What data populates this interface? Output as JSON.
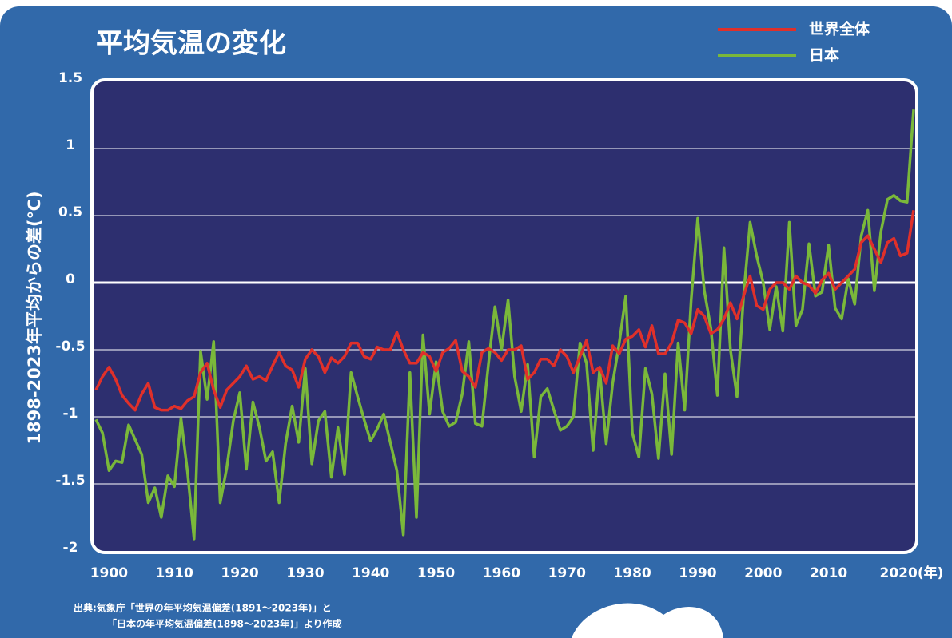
{
  "chart_data": {
    "type": "line",
    "title": "平均気温の変化",
    "ylabel": "1898-2023年平均からの差(℃)",
    "source": [
      "出典:気象庁「世界の年平均気温偏差(1891〜2023年)」と",
      "「日本の年平均気温偏差(1898〜2023年)」より作成"
    ],
    "x": [
      1898,
      1899,
      1900,
      1901,
      1902,
      1903,
      1904,
      1905,
      1906,
      1907,
      1908,
      1909,
      1910,
      1911,
      1912,
      1913,
      1914,
      1915,
      1916,
      1917,
      1918,
      1919,
      1920,
      1921,
      1922,
      1923,
      1924,
      1925,
      1926,
      1927,
      1928,
      1929,
      1930,
      1931,
      1932,
      1933,
      1934,
      1935,
      1936,
      1937,
      1938,
      1939,
      1940,
      1941,
      1942,
      1943,
      1944,
      1945,
      1946,
      1947,
      1948,
      1949,
      1950,
      1951,
      1952,
      1953,
      1954,
      1955,
      1956,
      1957,
      1958,
      1959,
      1960,
      1961,
      1962,
      1963,
      1964,
      1965,
      1966,
      1967,
      1968,
      1969,
      1970,
      1971,
      1972,
      1973,
      1974,
      1975,
      1976,
      1977,
      1978,
      1979,
      1980,
      1981,
      1982,
      1983,
      1984,
      1985,
      1986,
      1987,
      1988,
      1989,
      1990,
      1991,
      1992,
      1993,
      1994,
      1995,
      1996,
      1997,
      1998,
      1999,
      2000,
      2001,
      2002,
      2003,
      2004,
      2005,
      2006,
      2007,
      2008,
      2009,
      2010,
      2011,
      2012,
      2013,
      2014,
      2015,
      2016,
      2017,
      2018,
      2019,
      2020,
      2021,
      2022,
      2023
    ],
    "series": [
      {
        "name": "世界全体",
        "color": "#e0302a",
        "values": [
          -0.8,
          -0.7,
          -0.63,
          -0.72,
          -0.84,
          -0.9,
          -0.95,
          -0.83,
          -0.75,
          -0.93,
          -0.95,
          -0.95,
          -0.92,
          -0.94,
          -0.88,
          -0.85,
          -0.67,
          -0.6,
          -0.8,
          -0.93,
          -0.8,
          -0.75,
          -0.7,
          -0.62,
          -0.72,
          -0.7,
          -0.73,
          -0.62,
          -0.52,
          -0.62,
          -0.65,
          -0.78,
          -0.57,
          -0.5,
          -0.55,
          -0.67,
          -0.56,
          -0.6,
          -0.55,
          -0.45,
          -0.45,
          -0.55,
          -0.57,
          -0.48,
          -0.5,
          -0.5,
          -0.37,
          -0.5,
          -0.6,
          -0.6,
          -0.52,
          -0.55,
          -0.66,
          -0.52,
          -0.49,
          -0.43,
          -0.66,
          -0.7,
          -0.78,
          -0.52,
          -0.49,
          -0.52,
          -0.58,
          -0.5,
          -0.5,
          -0.47,
          -0.72,
          -0.67,
          -0.57,
          -0.57,
          -0.62,
          -0.5,
          -0.55,
          -0.67,
          -0.55,
          -0.43,
          -0.67,
          -0.63,
          -0.75,
          -0.47,
          -0.53,
          -0.42,
          -0.4,
          -0.35,
          -0.48,
          -0.32,
          -0.53,
          -0.53,
          -0.45,
          -0.28,
          -0.3,
          -0.38,
          -0.2,
          -0.25,
          -0.38,
          -0.35,
          -0.27,
          -0.15,
          -0.27,
          -0.1,
          0.05,
          -0.17,
          -0.2,
          -0.05,
          0.0,
          0.0,
          -0.05,
          0.05,
          0.0,
          -0.02,
          -0.08,
          0.02,
          0.07,
          -0.05,
          0.0,
          0.05,
          0.1,
          0.3,
          0.35,
          0.25,
          0.15,
          0.3,
          0.33,
          0.2,
          0.22,
          0.54
        ]
      },
      {
        "name": "日本",
        "color": "#7ab83a",
        "values": [
          -1.02,
          -1.12,
          -1.4,
          -1.33,
          -1.34,
          -1.06,
          -1.17,
          -1.28,
          -1.64,
          -1.53,
          -1.75,
          -1.44,
          -1.52,
          -1.01,
          -1.41,
          -1.91,
          -0.51,
          -0.87,
          -0.44,
          -1.64,
          -1.38,
          -1.03,
          -0.82,
          -1.39,
          -0.89,
          -1.08,
          -1.33,
          -1.26,
          -1.64,
          -1.2,
          -0.92,
          -1.19,
          -0.64,
          -1.35,
          -1.03,
          -0.96,
          -1.45,
          -1.08,
          -1.43,
          -0.67,
          -0.85,
          -1.02,
          -1.18,
          -1.09,
          -0.98,
          -1.19,
          -1.4,
          -1.88,
          -0.67,
          -1.75,
          -0.39,
          -0.98,
          -0.59,
          -0.96,
          -1.07,
          -1.04,
          -0.83,
          -0.44,
          -1.05,
          -1.07,
          -0.61,
          -0.18,
          -0.5,
          -0.13,
          -0.7,
          -0.96,
          -0.61,
          -1.3,
          -0.85,
          -0.79,
          -0.95,
          -1.1,
          -1.07,
          -1.0,
          -0.45,
          -0.6,
          -1.25,
          -0.65,
          -1.2,
          -0.75,
          -0.45,
          -0.1,
          -1.12,
          -1.3,
          -0.64,
          -0.83,
          -1.31,
          -0.68,
          -1.28,
          -0.45,
          -0.95,
          -0.13,
          0.48,
          -0.06,
          -0.34,
          -0.84,
          0.26,
          -0.5,
          -0.85,
          -0.1,
          0.45,
          0.2,
          0.0,
          -0.35,
          -0.03,
          -0.36,
          0.45,
          -0.32,
          -0.2,
          0.29,
          -0.1,
          -0.07,
          0.28,
          -0.19,
          -0.27,
          0.03,
          -0.16,
          0.35,
          0.54,
          -0.06,
          0.38,
          0.62,
          0.65,
          0.61,
          0.6,
          1.29
        ]
      }
    ],
    "xlim": [
      1898,
      2023
    ],
    "xticks": [
      1900,
      1910,
      1920,
      1930,
      1940,
      1950,
      1960,
      1970,
      1980,
      1990,
      2000,
      2010,
      {
        "value": 2020,
        "label": "2020(年)"
      }
    ],
    "ylim": [
      -2,
      1.5
    ],
    "yticks": [
      1.5,
      1,
      0.5,
      0,
      -0.5,
      -1,
      -1.5,
      -2
    ],
    "grid": true,
    "legend": "top-right"
  }
}
